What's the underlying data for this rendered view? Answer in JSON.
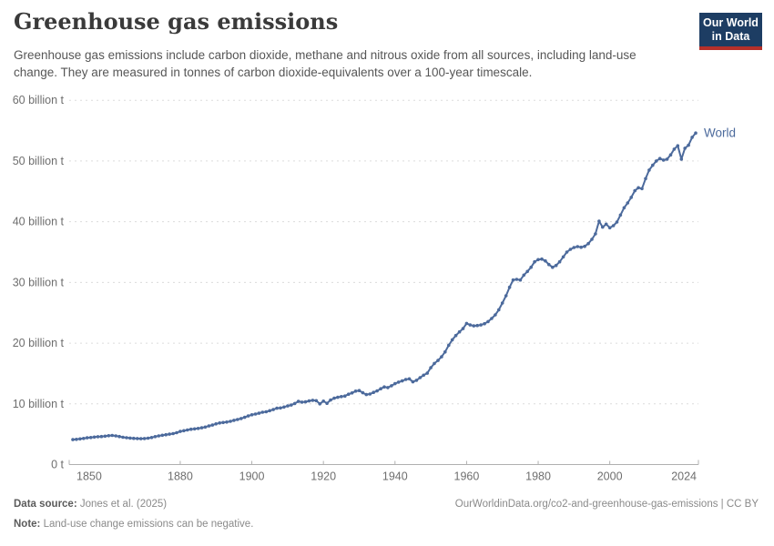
{
  "header": {
    "title": "Greenhouse gas emissions",
    "subtitle": "Greenhouse gas emissions include carbon dioxide, methane and nitrous oxide from all sources, including land-use change. They are measured in tonnes of carbon dioxide-equivalents over a 100-year timescale.",
    "logo": {
      "line1": "Our World",
      "line2": "in Data"
    }
  },
  "chart_data": {
    "type": "line",
    "title": "Greenhouse gas emissions",
    "unit": "tonnes of carbon dioxide-equivalents",
    "xlabel": "",
    "ylabel": "",
    "xlim": [
      1850,
      2024
    ],
    "ylim": [
      0,
      60
    ],
    "grid": "horizontal-dashed",
    "legend": "series-end-label",
    "x_ticks": [
      1850,
      1880,
      1900,
      1920,
      1940,
      1960,
      1980,
      2000,
      2024
    ],
    "y_ticks": [
      {
        "value": 0,
        "label": "0 t"
      },
      {
        "value": 10,
        "label": "10 billion t"
      },
      {
        "value": 20,
        "label": "20 billion t"
      },
      {
        "value": 30,
        "label": "30 billion t"
      },
      {
        "value": 40,
        "label": "40 billion t"
      },
      {
        "value": 50,
        "label": "50 billion t"
      },
      {
        "value": 60,
        "label": "60 billion t"
      }
    ],
    "x_years": {
      "start": 1850,
      "end": 2024,
      "step": 1
    },
    "series": [
      {
        "name": "World",
        "color": "#4c6a9c",
        "unit": "billion t",
        "values": [
          4.1,
          4.15,
          4.22,
          4.3,
          4.4,
          4.45,
          4.52,
          4.58,
          4.62,
          4.68,
          4.75,
          4.8,
          4.72,
          4.62,
          4.5,
          4.42,
          4.36,
          4.32,
          4.28,
          4.26,
          4.28,
          4.34,
          4.45,
          4.6,
          4.72,
          4.83,
          4.92,
          5.0,
          5.1,
          5.25,
          5.45,
          5.58,
          5.7,
          5.82,
          5.88,
          5.95,
          6.05,
          6.18,
          6.35,
          6.5,
          6.7,
          6.85,
          6.92,
          7.0,
          7.12,
          7.28,
          7.42,
          7.58,
          7.78,
          8.0,
          8.2,
          8.32,
          8.45,
          8.62,
          8.7,
          8.88,
          9.05,
          9.28,
          9.32,
          9.48,
          9.65,
          9.8,
          10.05,
          10.4,
          10.28,
          10.32,
          10.48,
          10.58,
          10.52,
          10.0,
          10.45,
          10.08,
          10.62,
          10.92,
          11.08,
          11.2,
          11.28,
          11.58,
          11.8,
          12.1,
          12.18,
          11.82,
          11.52,
          11.62,
          11.88,
          12.12,
          12.48,
          12.78,
          12.68,
          12.98,
          13.32,
          13.58,
          13.78,
          14.02,
          14.12,
          13.62,
          13.88,
          14.32,
          14.72,
          15.05,
          15.95,
          16.65,
          17.15,
          17.75,
          18.55,
          19.65,
          20.55,
          21.25,
          21.85,
          22.4,
          23.25,
          23.0,
          22.85,
          22.9,
          23.0,
          23.2,
          23.55,
          24.05,
          24.65,
          25.5,
          26.6,
          27.8,
          29.2,
          30.4,
          30.5,
          30.4,
          31.2,
          31.8,
          32.5,
          33.4,
          33.75,
          33.85,
          33.55,
          32.95,
          32.5,
          32.8,
          33.4,
          34.2,
          35.0,
          35.45,
          35.75,
          35.9,
          35.8,
          35.95,
          36.4,
          37.1,
          38.0,
          40.1,
          39.1,
          39.6,
          39.0,
          39.35,
          39.95,
          41.1,
          42.3,
          43.1,
          44.0,
          45.1,
          45.6,
          45.45,
          47.1,
          48.5,
          49.3,
          50.0,
          50.4,
          50.15,
          50.3,
          51.0,
          51.95,
          52.5,
          50.3,
          52.1,
          52.6,
          53.9,
          54.6
        ]
      }
    ]
  },
  "footer": {
    "source_label": "Data source:",
    "source_value": "Jones et al. (2025)",
    "note_label": "Note:",
    "note_value": "Land-use change emissions can be negative.",
    "attribution": "OurWorldinData.org/co2-and-greenhouse-gas-emissions | CC BY"
  },
  "colors": {
    "line": "#4c6a9c",
    "gridline": "#dcdcdc",
    "axis": "#b0b0b0",
    "tick_text": "#6e6e6e",
    "logo_bg": "#1d3d63",
    "logo_bar": "#b5302a"
  }
}
